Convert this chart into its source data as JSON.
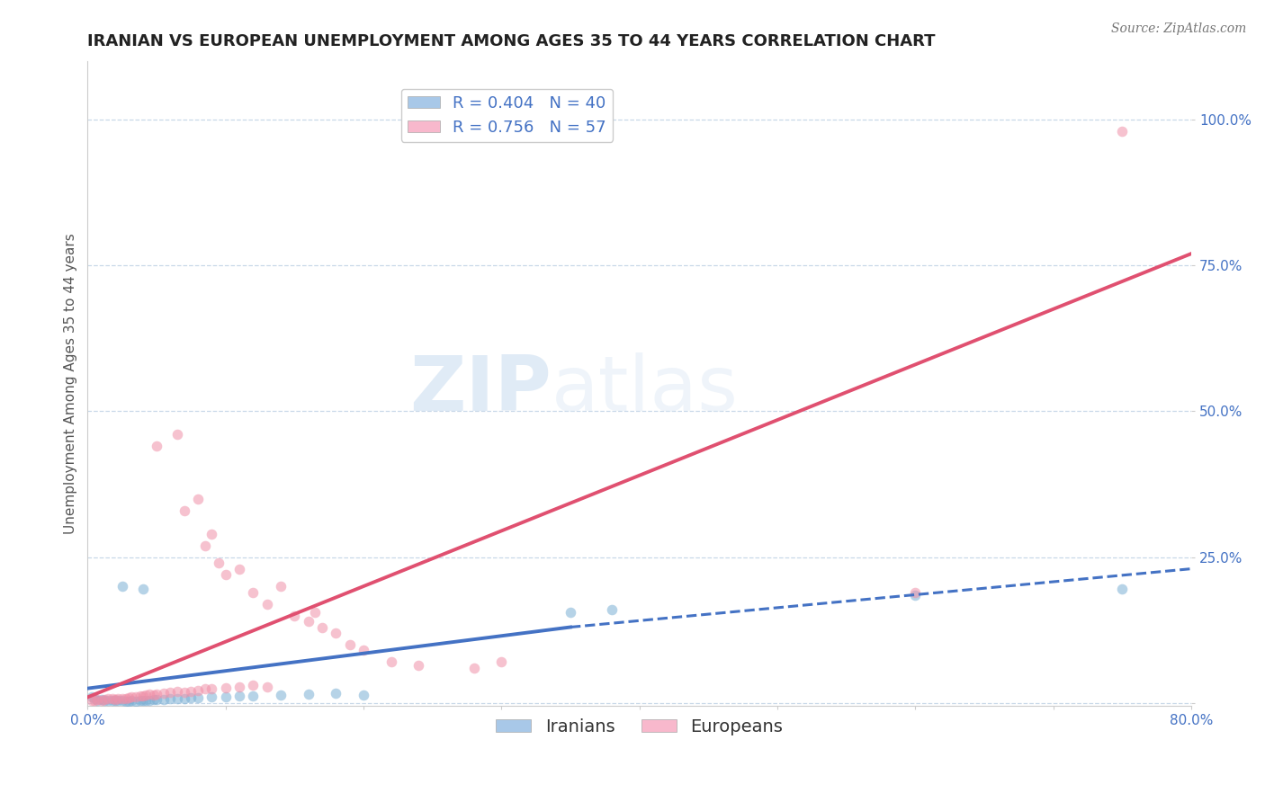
{
  "title": "IRANIAN VS EUROPEAN UNEMPLOYMENT AMONG AGES 35 TO 44 YEARS CORRELATION CHART",
  "source": "Source: ZipAtlas.com",
  "ylabel": "Unemployment Among Ages 35 to 44 years",
  "xlim": [
    0.0,
    0.8
  ],
  "ylim": [
    -0.005,
    1.1
  ],
  "yticks": [
    0.0,
    0.25,
    0.5,
    0.75,
    1.0
  ],
  "ytick_labels": [
    "",
    "25.0%",
    "50.0%",
    "75.0%",
    "100.0%"
  ],
  "legend_entries": [
    {
      "label": "R = 0.404   N = 40",
      "color": "#a8c8e8"
    },
    {
      "label": "R = 0.756   N = 57",
      "color": "#f8b8cc"
    }
  ],
  "bottom_legend": [
    "Iranians",
    "Europeans"
  ],
  "bottom_legend_colors": [
    "#a8c8e8",
    "#f8b8cc"
  ],
  "iranians_scatter": [
    [
      0.003,
      0.01
    ],
    [
      0.005,
      0.008
    ],
    [
      0.007,
      0.005
    ],
    [
      0.01,
      0.006
    ],
    [
      0.012,
      0.005
    ],
    [
      0.015,
      0.005
    ],
    [
      0.018,
      0.004
    ],
    [
      0.02,
      0.004
    ],
    [
      0.022,
      0.005
    ],
    [
      0.025,
      0.004
    ],
    [
      0.028,
      0.003
    ],
    [
      0.03,
      0.003
    ],
    [
      0.032,
      0.004
    ],
    [
      0.035,
      0.003
    ],
    [
      0.038,
      0.004
    ],
    [
      0.04,
      0.004
    ],
    [
      0.042,
      0.005
    ],
    [
      0.045,
      0.005
    ],
    [
      0.048,
      0.006
    ],
    [
      0.05,
      0.006
    ],
    [
      0.055,
      0.006
    ],
    [
      0.06,
      0.007
    ],
    [
      0.065,
      0.007
    ],
    [
      0.07,
      0.008
    ],
    [
      0.075,
      0.009
    ],
    [
      0.08,
      0.009
    ],
    [
      0.09,
      0.01
    ],
    [
      0.1,
      0.011
    ],
    [
      0.11,
      0.012
    ],
    [
      0.12,
      0.012
    ],
    [
      0.025,
      0.2
    ],
    [
      0.04,
      0.195
    ],
    [
      0.14,
      0.013
    ],
    [
      0.16,
      0.015
    ],
    [
      0.18,
      0.016
    ],
    [
      0.2,
      0.013
    ],
    [
      0.35,
      0.155
    ],
    [
      0.38,
      0.16
    ],
    [
      0.6,
      0.185
    ],
    [
      0.75,
      0.195
    ]
  ],
  "europeans_scatter": [
    [
      0.003,
      0.005
    ],
    [
      0.005,
      0.004
    ],
    [
      0.007,
      0.006
    ],
    [
      0.01,
      0.005
    ],
    [
      0.012,
      0.006
    ],
    [
      0.015,
      0.007
    ],
    [
      0.018,
      0.008
    ],
    [
      0.02,
      0.006
    ],
    [
      0.022,
      0.007
    ],
    [
      0.025,
      0.008
    ],
    [
      0.028,
      0.008
    ],
    [
      0.03,
      0.009
    ],
    [
      0.032,
      0.01
    ],
    [
      0.035,
      0.01
    ],
    [
      0.038,
      0.012
    ],
    [
      0.04,
      0.012
    ],
    [
      0.042,
      0.014
    ],
    [
      0.045,
      0.015
    ],
    [
      0.048,
      0.014
    ],
    [
      0.05,
      0.015
    ],
    [
      0.055,
      0.016
    ],
    [
      0.06,
      0.018
    ],
    [
      0.065,
      0.02
    ],
    [
      0.07,
      0.018
    ],
    [
      0.075,
      0.02
    ],
    [
      0.08,
      0.022
    ],
    [
      0.085,
      0.024
    ],
    [
      0.09,
      0.025
    ],
    [
      0.1,
      0.026
    ],
    [
      0.11,
      0.028
    ],
    [
      0.12,
      0.03
    ],
    [
      0.13,
      0.028
    ],
    [
      0.05,
      0.44
    ],
    [
      0.065,
      0.46
    ],
    [
      0.07,
      0.33
    ],
    [
      0.08,
      0.35
    ],
    [
      0.085,
      0.27
    ],
    [
      0.09,
      0.29
    ],
    [
      0.095,
      0.24
    ],
    [
      0.1,
      0.22
    ],
    [
      0.11,
      0.23
    ],
    [
      0.12,
      0.19
    ],
    [
      0.13,
      0.17
    ],
    [
      0.14,
      0.2
    ],
    [
      0.15,
      0.15
    ],
    [
      0.16,
      0.14
    ],
    [
      0.165,
      0.155
    ],
    [
      0.17,
      0.13
    ],
    [
      0.18,
      0.12
    ],
    [
      0.19,
      0.1
    ],
    [
      0.2,
      0.09
    ],
    [
      0.22,
      0.07
    ],
    [
      0.24,
      0.065
    ],
    [
      0.28,
      0.06
    ],
    [
      0.3,
      0.07
    ],
    [
      0.6,
      0.19
    ],
    [
      0.75,
      0.98
    ]
  ],
  "iranians_line_solid": [
    [
      0.0,
      0.025
    ],
    [
      0.35,
      0.13
    ]
  ],
  "iranians_line_dashed": [
    [
      0.35,
      0.13
    ],
    [
      0.8,
      0.23
    ]
  ],
  "europeans_line": [
    [
      0.0,
      0.01
    ],
    [
      0.8,
      0.77
    ]
  ],
  "scatter_alpha": 0.55,
  "scatter_size": 70,
  "iranian_color": "#7bafd4",
  "european_color": "#f090a8",
  "iranian_line_color": "#4472c4",
  "european_line_color": "#e05070",
  "grid_color": "#c8d8e8",
  "background_color": "#ffffff",
  "title_fontsize": 13,
  "axis_label_fontsize": 11,
  "tick_fontsize": 11,
  "legend_fontsize": 13
}
